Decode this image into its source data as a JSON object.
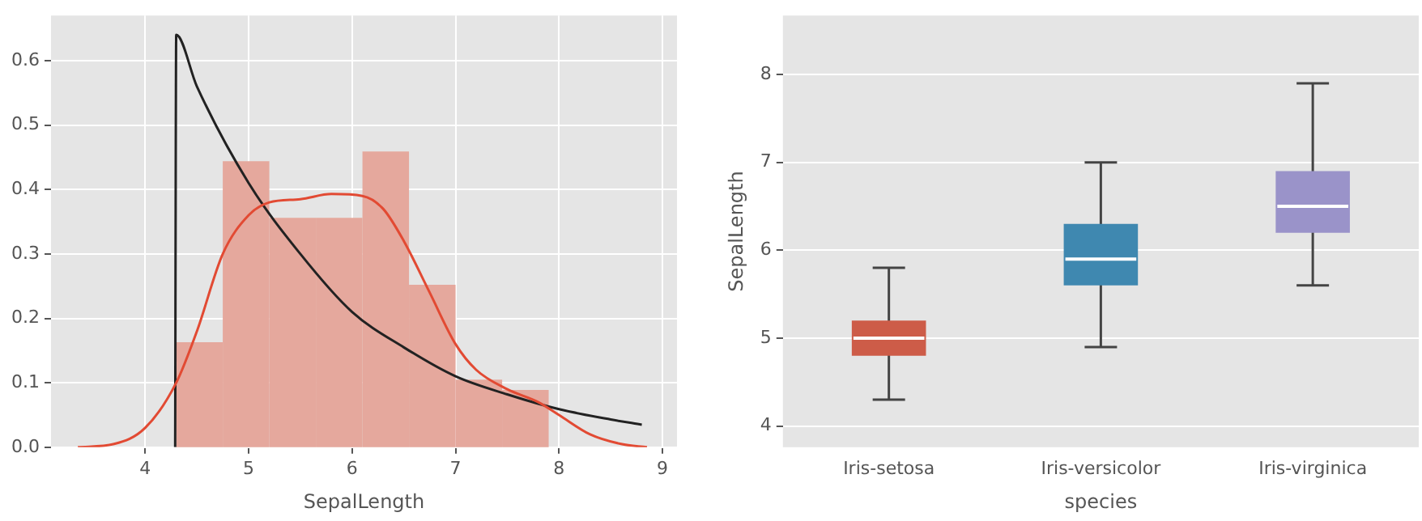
{
  "chart_data": [
    {
      "type": "histogram",
      "bins": [
        4.3,
        4.75,
        5.2,
        5.65,
        6.1,
        6.55,
        7.0,
        7.45,
        7.9
      ],
      "values": [
        0.163,
        0.444,
        0.356,
        0.356,
        0.459,
        0.252,
        0.105,
        0.089
      ],
      "color": "#e5a89d",
      "series": [
        {
          "type": "line",
          "color": "#e24a33",
          "x": [
            3.35,
            3.7,
            4.0,
            4.3,
            4.5,
            4.75,
            5.0,
            5.2,
            5.5,
            5.8,
            6.1,
            6.3,
            6.5,
            6.75,
            7.0,
            7.2,
            7.5,
            7.8,
            8.0,
            8.3,
            8.6,
            8.85
          ],
          "values": [
            0,
            0.005,
            0.03,
            0.1,
            0.18,
            0.3,
            0.36,
            0.38,
            0.385,
            0.393,
            0.39,
            0.37,
            0.32,
            0.24,
            0.16,
            0.12,
            0.09,
            0.07,
            0.05,
            0.02,
            0.005,
            0
          ]
        },
        {
          "type": "line",
          "color": "#222222",
          "x": [
            4.29,
            4.3,
            4.5,
            5.0,
            5.5,
            6.0,
            6.5,
            7.0,
            7.5,
            8.0,
            8.5,
            8.8
          ],
          "values": [
            0,
            0.64,
            0.56,
            0.41,
            0.3,
            0.21,
            0.155,
            0.11,
            0.082,
            0.059,
            0.043,
            0.035
          ]
        }
      ],
      "xlabel": "SepalLength",
      "xlim": [
        3.09,
        9.14
      ],
      "xticks": [
        4,
        5,
        6,
        7,
        8,
        9
      ],
      "ylim": [
        0,
        0.67
      ],
      "yticks": [
        {
          "value": 0,
          "label": "0.0"
        },
        {
          "value": 0.1,
          "label": "0.1"
        },
        {
          "value": 0.2,
          "label": "0.2"
        },
        {
          "value": 0.3,
          "label": "0.3"
        },
        {
          "value": 0.4,
          "label": "0.4"
        },
        {
          "value": 0.5,
          "label": "0.5"
        },
        {
          "value": 0.6,
          "label": "0.6"
        }
      ],
      "grid": true
    },
    {
      "type": "box",
      "categories": [
        "Iris-setosa",
        "Iris-versicolor",
        "Iris-virginica"
      ],
      "boxes": [
        {
          "low": 4.3,
          "q1": 4.8,
          "median": 5.0,
          "q3": 5.2,
          "high": 5.8
        },
        {
          "low": 4.9,
          "q1": 5.6,
          "median": 5.9,
          "q3": 6.3,
          "high": 7.0
        },
        {
          "low": 5.6,
          "q1": 6.2,
          "median": 6.5,
          "q3": 6.9,
          "high": 7.9
        }
      ],
      "colors": [
        "#cd5c48",
        "#3f88b0",
        "#9a93c9"
      ],
      "xlabel": "species",
      "ylabel": "SepalLength",
      "ylim": [
        3.76,
        8.67
      ],
      "yticks": [
        4,
        5,
        6,
        7,
        8
      ],
      "grid": "y"
    }
  ]
}
